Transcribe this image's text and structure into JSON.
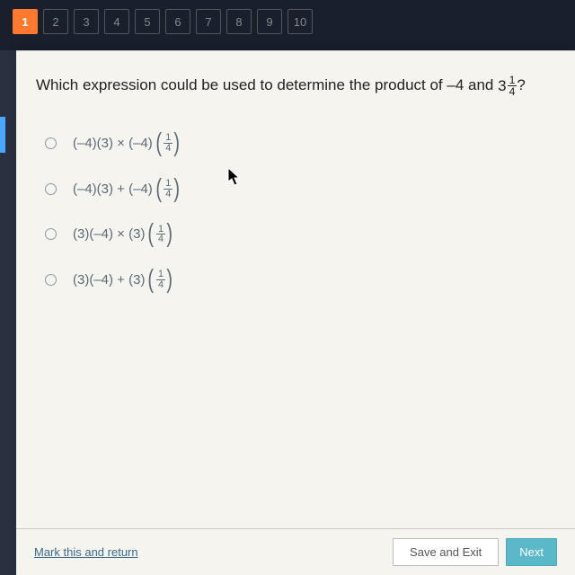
{
  "nav": {
    "items": [
      "1",
      "2",
      "3",
      "4",
      "5",
      "6",
      "7",
      "8",
      "9",
      "10"
    ],
    "active": 0
  },
  "question": {
    "prefix": "Which expression could be used to determine the product of –4 and ",
    "mixed_whole": "3",
    "mixed_num": "1",
    "mixed_den": "4",
    "suffix": "?"
  },
  "options": [
    {
      "left": "(–4)(3) × (–4)",
      "fn": "1",
      "fd": "4"
    },
    {
      "left": "(–4)(3) + (–4)",
      "fn": "1",
      "fd": "4"
    },
    {
      "left": "(3)(–4) × (3)",
      "fn": "1",
      "fd": "4"
    },
    {
      "left": "(3)(–4) + (3)",
      "fn": "1",
      "fd": "4"
    }
  ],
  "bottom": {
    "mark_link": "Mark this and return",
    "save_btn": "Save and Exit",
    "next_btn": "Next"
  },
  "colors": {
    "page_bg": "#1a1f2e",
    "content_bg": "#f5f4ef",
    "accent": "#ff7a2e",
    "option_color": "#5a6a78",
    "next_btn_bg": "#5bb8c8"
  }
}
